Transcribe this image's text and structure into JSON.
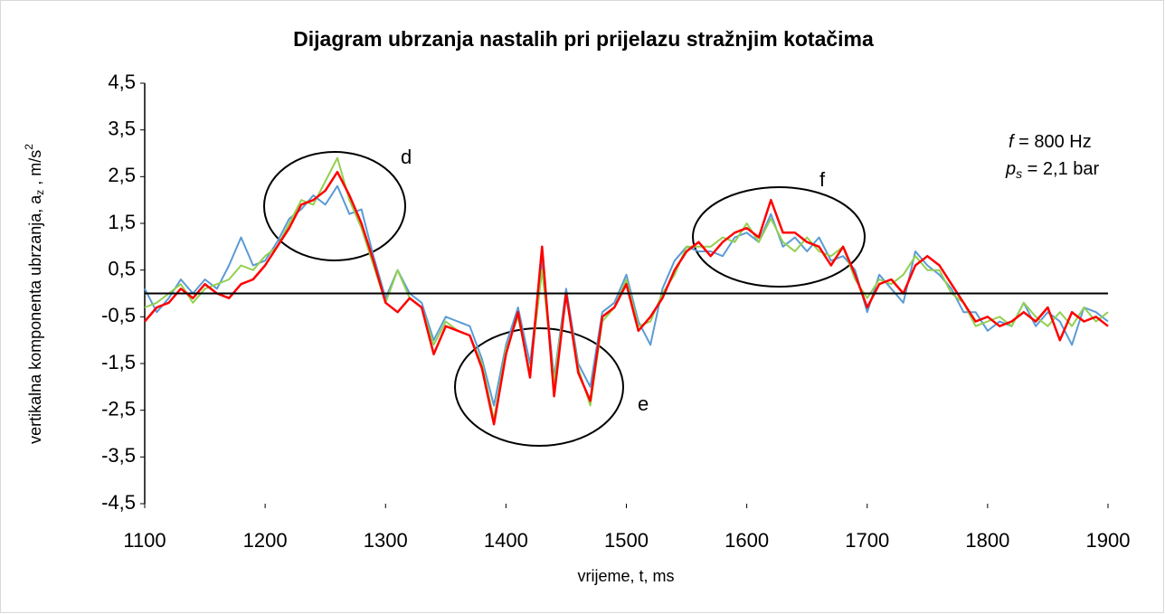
{
  "chart_data": {
    "type": "line",
    "title": "Dijagram ubrzanja nastalih pri prijelazu stražnjim kotačima",
    "x_label": "vrijeme,  t, ms",
    "y_label": [
      "vertikalna komponenta ubrzanja,  a",
      "z",
      " , m/s",
      "2"
    ],
    "annotations": [
      "d",
      "e",
      "f"
    ],
    "parameters": [
      [
        "f",
        " = 800 Hz"
      ],
      [
        "p",
        "s",
        " = 2,1 bar"
      ]
    ],
    "x": [
      1100,
      1110,
      1120,
      1130,
      1140,
      1150,
      1160,
      1170,
      1180,
      1190,
      1200,
      1210,
      1220,
      1230,
      1240,
      1250,
      1260,
      1270,
      1280,
      1290,
      1300,
      1310,
      1320,
      1330,
      1340,
      1350,
      1360,
      1370,
      1380,
      1390,
      1400,
      1410,
      1420,
      1430,
      1440,
      1450,
      1460,
      1470,
      1480,
      1490,
      1500,
      1510,
      1520,
      1530,
      1540,
      1550,
      1560,
      1570,
      1580,
      1590,
      1600,
      1610,
      1620,
      1630,
      1640,
      1650,
      1660,
      1670,
      1680,
      1690,
      1700,
      1710,
      1720,
      1730,
      1740,
      1750,
      1760,
      1770,
      1780,
      1790,
      1800,
      1810,
      1820,
      1830,
      1840,
      1850,
      1860,
      1870,
      1880,
      1890,
      1900
    ],
    "series": [
      {
        "color": "#5b9bd5",
        "values": [
          0.1,
          -0.4,
          -0.1,
          0.3,
          0.0,
          0.3,
          0.1,
          0.6,
          1.2,
          0.6,
          0.7,
          1.1,
          1.6,
          1.8,
          2.1,
          1.9,
          2.3,
          1.7,
          1.8,
          0.8,
          -0.1,
          0.5,
          0.0,
          -0.2,
          -1.0,
          -0.5,
          -0.6,
          -0.7,
          -1.4,
          -2.4,
          -1.1,
          -0.3,
          -1.5,
          0.7,
          -1.8,
          0.1,
          -1.5,
          -2.0,
          -0.4,
          -0.2,
          0.4,
          -0.6,
          -1.1,
          0.1,
          0.7,
          1.0,
          0.9,
          0.9,
          0.8,
          1.2,
          1.3,
          1.1,
          1.7,
          1.0,
          1.2,
          0.9,
          1.2,
          0.7,
          0.8,
          0.5,
          -0.4,
          0.4,
          0.1,
          -0.2,
          0.9,
          0.6,
          0.4,
          0.1,
          -0.4,
          -0.4,
          -0.8,
          -0.6,
          -0.7,
          -0.2,
          -0.7,
          -0.4,
          -0.6,
          -1.1,
          -0.3,
          -0.4,
          -0.6
        ]
      },
      {
        "color": "#92d050",
        "values": [
          -0.3,
          -0.2,
          0.0,
          0.2,
          -0.2,
          0.1,
          0.2,
          0.3,
          0.6,
          0.5,
          0.8,
          1.0,
          1.5,
          2.0,
          1.9,
          2.4,
          2.9,
          2.0,
          1.4,
          0.6,
          -0.2,
          0.5,
          -0.1,
          -0.3,
          -1.1,
          -0.6,
          -0.8,
          -0.9,
          -1.5,
          -2.7,
          -1.2,
          -0.5,
          -1.7,
          0.5,
          -1.9,
          0.0,
          -1.6,
          -2.4,
          -0.6,
          -0.3,
          0.3,
          -0.7,
          -0.6,
          0.0,
          0.4,
          1.0,
          1.0,
          1.0,
          1.2,
          1.1,
          1.5,
          1.1,
          1.6,
          1.1,
          0.9,
          1.2,
          0.9,
          0.8,
          1.0,
          0.3,
          -0.1,
          0.3,
          0.2,
          0.4,
          0.8,
          0.5,
          0.5,
          0.0,
          -0.2,
          -0.7,
          -0.6,
          -0.5,
          -0.7,
          -0.2,
          -0.5,
          -0.7,
          -0.4,
          -0.7,
          -0.3,
          -0.6,
          -0.4
        ]
      },
      {
        "color": "#ff0000",
        "values": [
          -0.6,
          -0.3,
          -0.2,
          0.1,
          -0.1,
          0.2,
          0.0,
          -0.1,
          0.2,
          0.3,
          0.6,
          1.0,
          1.4,
          1.9,
          2.0,
          2.2,
          2.6,
          2.1,
          1.5,
          0.7,
          -0.2,
          -0.4,
          -0.1,
          -0.3,
          -1.3,
          -0.7,
          -0.8,
          -0.9,
          -1.6,
          -2.8,
          -1.3,
          -0.4,
          -1.8,
          1.0,
          -2.2,
          0.0,
          -1.7,
          -2.3,
          -0.5,
          -0.3,
          0.2,
          -0.8,
          -0.5,
          -0.1,
          0.5,
          0.9,
          1.1,
          0.8,
          1.1,
          1.3,
          1.4,
          1.2,
          2.0,
          1.3,
          1.3,
          1.1,
          1.0,
          0.6,
          1.0,
          0.4,
          -0.3,
          0.2,
          0.3,
          0.0,
          0.6,
          0.8,
          0.6,
          0.2,
          -0.2,
          -0.6,
          -0.5,
          -0.7,
          -0.6,
          -0.4,
          -0.6,
          -0.3,
          -1.0,
          -0.4,
          -0.6,
          -0.5,
          -0.7
        ]
      }
    ],
    "xlim": [
      1100,
      1900
    ],
    "xticks": [
      1100,
      1200,
      1300,
      1400,
      1500,
      1600,
      1700,
      1800,
      1900
    ],
    "ylim": [
      -4.5,
      4.5
    ],
    "yticks": [
      {
        "value": -4.5,
        "label": "-4,5"
      },
      {
        "value": -3.5,
        "label": "-3,5"
      },
      {
        "value": -2.5,
        "label": "-2,5"
      },
      {
        "value": -1.5,
        "label": "-1,5"
      },
      {
        "value": -0.5,
        "label": "-0,5"
      },
      {
        "value": 0.5,
        "label": "0,5"
      },
      {
        "value": 1.5,
        "label": "1,5"
      },
      {
        "value": 2.5,
        "label": "2,5"
      },
      {
        "value": 3.5,
        "label": "3,5"
      },
      {
        "value": 4.5,
        "label": "4,5"
      }
    ]
  }
}
